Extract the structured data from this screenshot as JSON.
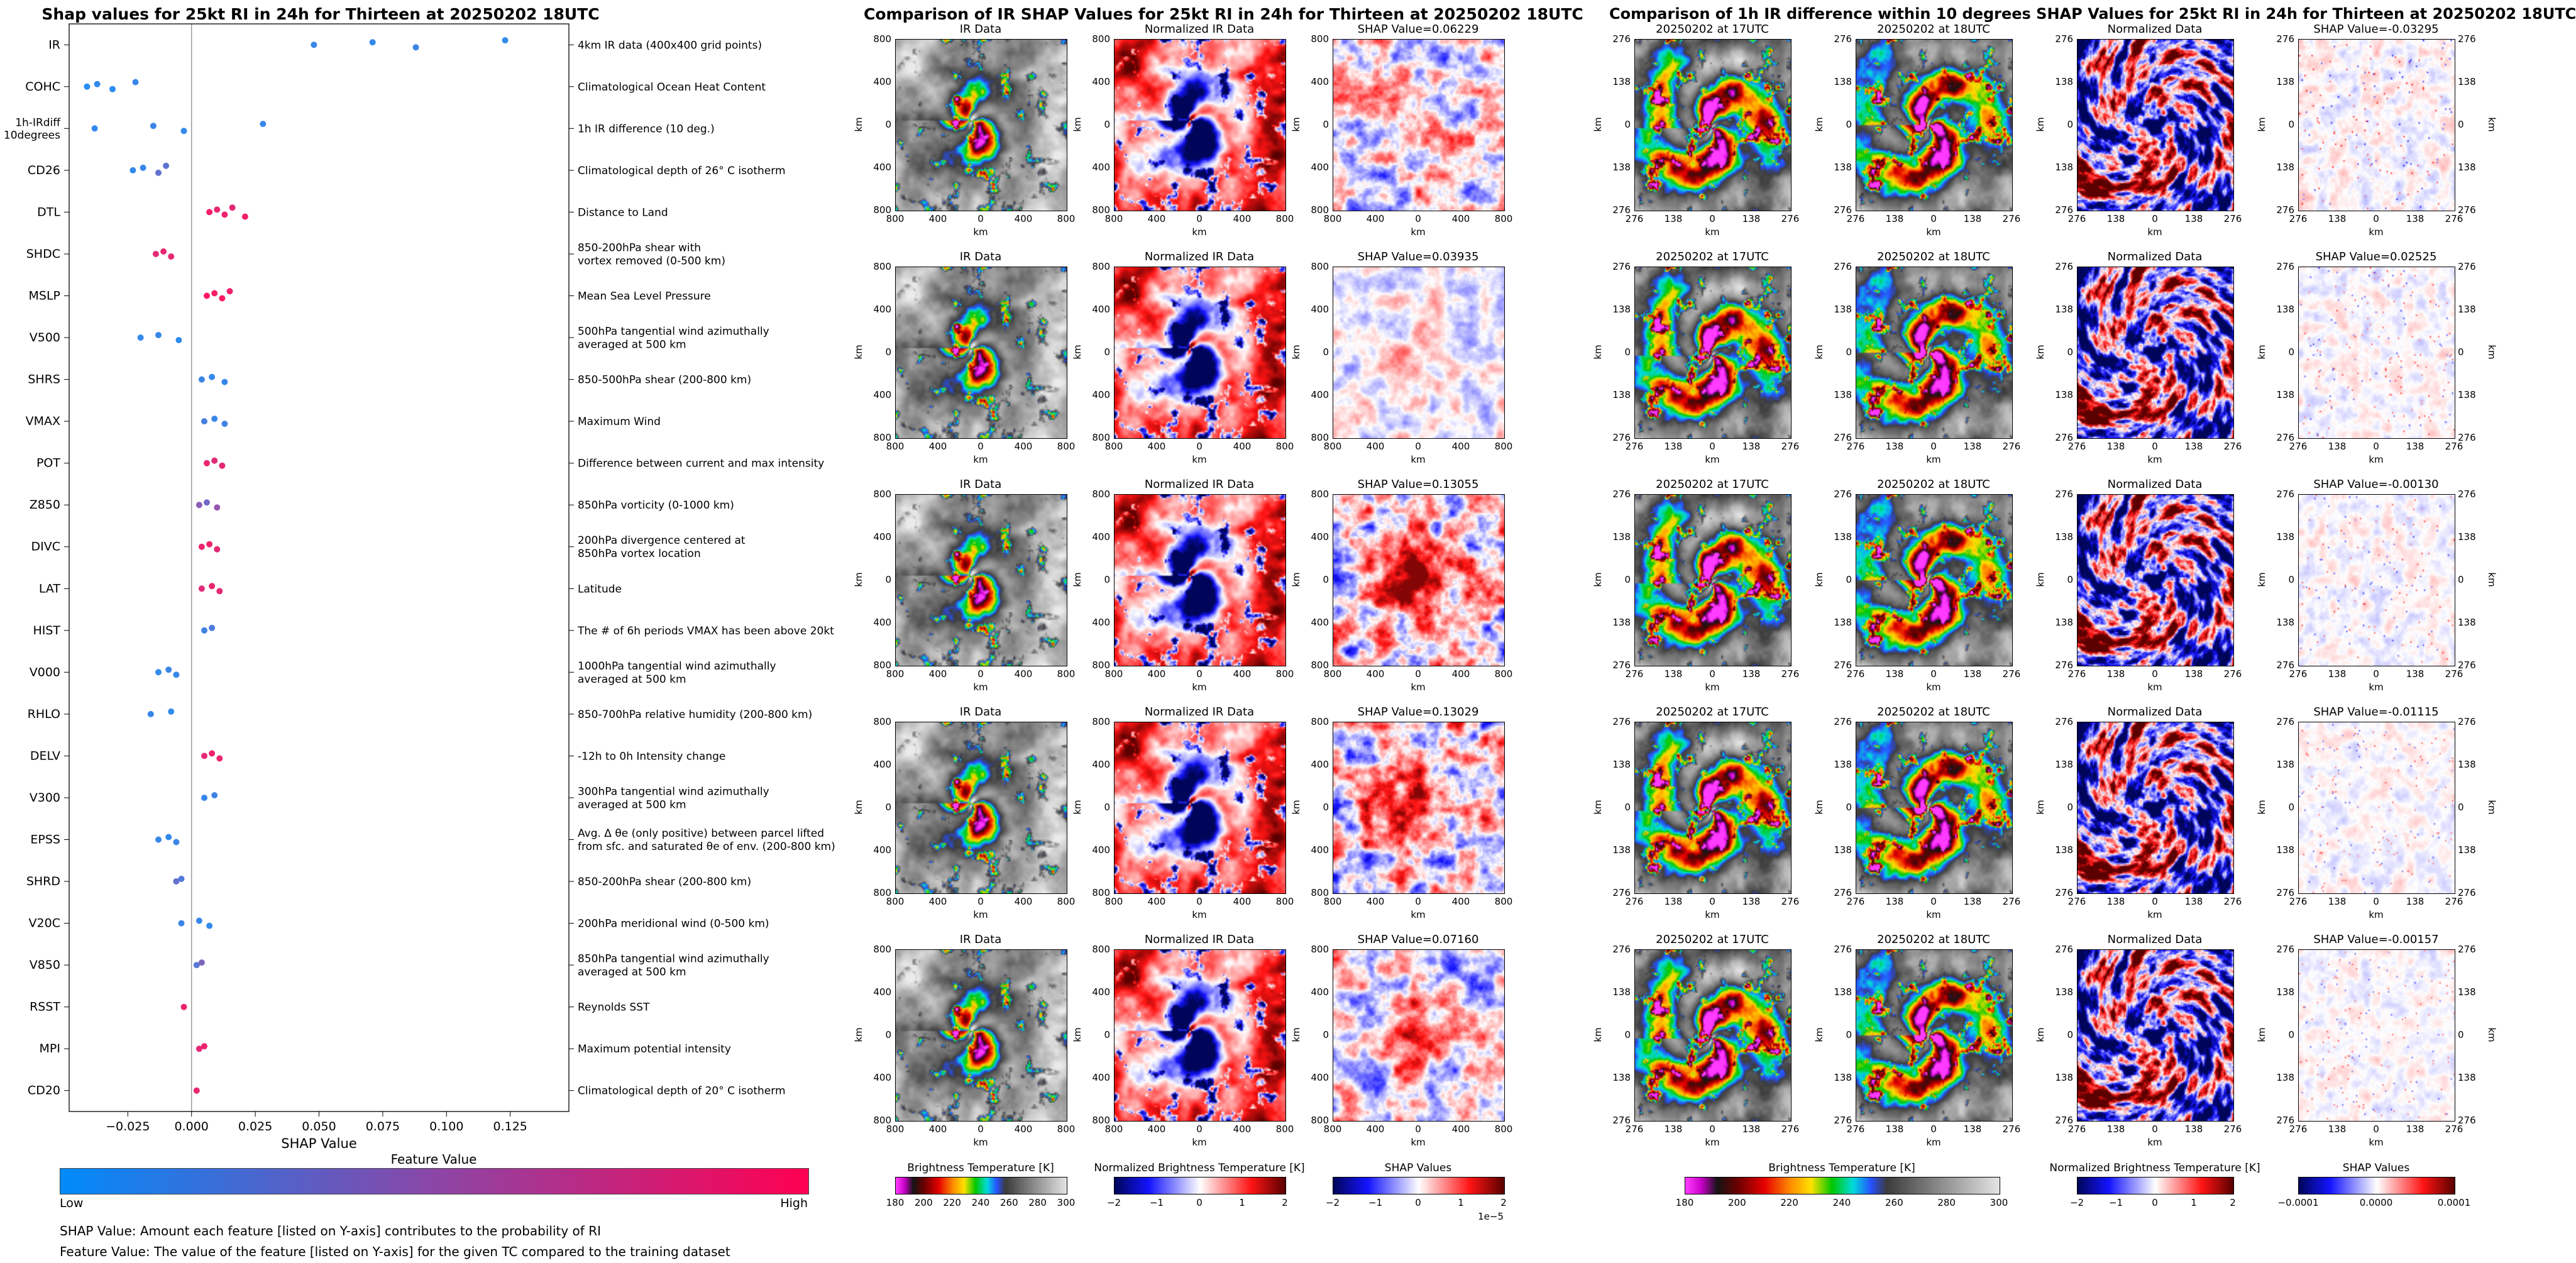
{
  "chart_data": [
    {
      "type": "scatter",
      "title": "Shap values for 25kt RI in 24h for Thirteen at 20250202 18UTC",
      "xlabel": "SHAP Value",
      "xlim": [
        -0.048,
        0.148
      ],
      "x_ticks": [
        -0.025,
        0,
        0.025,
        0.05,
        0.075,
        0.1,
        0.125
      ],
      "x_tick_labels": [
        "−0.025",
        "0.000",
        "0.025",
        "0.050",
        "0.075",
        "0.100",
        "0.125"
      ],
      "colorbar": {
        "title": "Feature Value",
        "low_label": "Low",
        "high_label": "High"
      },
      "features": [
        {
          "name": "IR",
          "desc": "4km IR data (400x400 grid points)",
          "points": [
            [
              0.048,
              0.12
            ],
            [
              0.071,
              0.1
            ],
            [
              0.088,
              0.14
            ],
            [
              0.123,
              0.1
            ]
          ]
        },
        {
          "name": "COHC",
          "desc": "Climatological Ocean Heat Content",
          "points": [
            [
              -0.041,
              0.06
            ],
            [
              -0.037,
              0.1
            ],
            [
              -0.031,
              0.08
            ],
            [
              -0.022,
              0.12
            ]
          ]
        },
        {
          "name": "1h-IRdiff\n10degrees",
          "desc": "1h IR difference (10 deg.)",
          "points": [
            [
              -0.038,
              0.1
            ],
            [
              -0.015,
              0.14
            ],
            [
              -0.003,
              0.1
            ],
            [
              0.028,
              0.12
            ]
          ]
        },
        {
          "name": "CD26",
          "desc": "Climatological depth of 26° C isotherm",
          "points": [
            [
              -0.023,
              0.1
            ],
            [
              -0.019,
              0.12
            ],
            [
              -0.013,
              0.3
            ],
            [
              -0.01,
              0.28
            ]
          ]
        },
        {
          "name": "DTL",
          "desc": "Distance to Land",
          "points": [
            [
              0.007,
              0.95
            ],
            [
              0.01,
              0.9
            ],
            [
              0.013,
              0.92
            ],
            [
              0.016,
              0.88
            ],
            [
              0.021,
              0.94
            ]
          ]
        },
        {
          "name": "SHDC",
          "desc": "850-200hPa shear with\nvortex removed (0-500 km)",
          "points": [
            [
              -0.014,
              0.86
            ],
            [
              -0.011,
              0.9
            ],
            [
              -0.008,
              0.88
            ]
          ]
        },
        {
          "name": "MSLP",
          "desc": "Mean Sea Level Pressure",
          "points": [
            [
              0.006,
              1.0
            ],
            [
              0.009,
              0.96
            ],
            [
              0.012,
              1.0
            ],
            [
              0.015,
              0.94
            ]
          ]
        },
        {
          "name": "V500",
          "desc": "500hPa tangential wind azimuthally\naveraged at 500 km",
          "points": [
            [
              -0.02,
              0.1
            ],
            [
              -0.013,
              0.12
            ],
            [
              -0.005,
              0.08
            ]
          ]
        },
        {
          "name": "SHRS",
          "desc": "850-500hPa shear (200-800 km)",
          "points": [
            [
              0.004,
              0.14
            ],
            [
              0.008,
              0.1
            ],
            [
              0.013,
              0.12
            ]
          ]
        },
        {
          "name": "VMAX",
          "desc": "Maximum Wind",
          "points": [
            [
              0.005,
              0.18
            ],
            [
              0.009,
              0.14
            ],
            [
              0.013,
              0.16
            ]
          ]
        },
        {
          "name": "POT",
          "desc": "Difference between current and max intensity",
          "points": [
            [
              0.006,
              0.9
            ],
            [
              0.009,
              0.86
            ],
            [
              0.012,
              0.88
            ]
          ]
        },
        {
          "name": "Z850",
          "desc": "850hPa vorticity (0-1000 km)",
          "points": [
            [
              0.003,
              0.45
            ],
            [
              0.006,
              0.35
            ],
            [
              0.01,
              0.5
            ]
          ]
        },
        {
          "name": "DIVC",
          "desc": "200hPa divergence centered at\n850hPa vortex location",
          "points": [
            [
              0.004,
              0.9
            ],
            [
              0.007,
              0.92
            ],
            [
              0.01,
              0.88
            ]
          ]
        },
        {
          "name": "LAT",
          "desc": "Latitude",
          "points": [
            [
              0.004,
              0.86
            ],
            [
              0.008,
              0.9
            ],
            [
              0.011,
              0.87
            ]
          ]
        },
        {
          "name": "HIST",
          "desc": "The # of 6h periods VMAX has been above 20kt",
          "points": [
            [
              0.005,
              0.16
            ],
            [
              0.008,
              0.2
            ]
          ]
        },
        {
          "name": "V000",
          "desc": "1000hPa tangential wind azimuthally\naveraged at 500 km",
          "points": [
            [
              -0.013,
              0.1
            ],
            [
              -0.009,
              0.14
            ],
            [
              -0.006,
              0.12
            ]
          ]
        },
        {
          "name": "RHLO",
          "desc": "850-700hPa relative humidity (200-800 km)",
          "points": [
            [
              -0.016,
              0.12
            ],
            [
              -0.008,
              0.1
            ]
          ]
        },
        {
          "name": "DELV",
          "desc": "-12h to 0h Intensity change",
          "points": [
            [
              0.005,
              0.88
            ],
            [
              0.008,
              0.92
            ],
            [
              0.011,
              0.9
            ]
          ]
        },
        {
          "name": "V300",
          "desc": "300hPa tangential wind azimuthally\naveraged at 500 km",
          "points": [
            [
              0.005,
              0.12
            ],
            [
              0.009,
              0.15
            ]
          ]
        },
        {
          "name": "EPSS",
          "desc": "Avg. Δ θe (only positive) between parcel lifted\nfrom sfc. and saturated θe of env. (200-800 km)",
          "points": [
            [
              -0.013,
              0.12
            ],
            [
              -0.009,
              0.1
            ],
            [
              -0.006,
              0.14
            ]
          ]
        },
        {
          "name": "SHRD",
          "desc": "850-200hPa shear (200-800 km)",
          "points": [
            [
              -0.006,
              0.3
            ],
            [
              -0.004,
              0.22
            ]
          ]
        },
        {
          "name": "V20C",
          "desc": "200hPa meridional wind (0-500 km)",
          "points": [
            [
              -0.004,
              0.14
            ],
            [
              0.003,
              0.12
            ],
            [
              0.007,
              0.1
            ]
          ]
        },
        {
          "name": "V850",
          "desc": "850hPa tangential wind azimuthally\naveraged at 500 km",
          "points": [
            [
              0.002,
              0.25
            ],
            [
              0.004,
              0.4
            ]
          ]
        },
        {
          "name": "RSST",
          "desc": "Reynolds SST",
          "points": [
            [
              -0.003,
              0.9
            ]
          ]
        },
        {
          "name": "MPI",
          "desc": "Maximum potential intensity",
          "points": [
            [
              0.003,
              0.88
            ],
            [
              0.005,
              0.92
            ]
          ]
        },
        {
          "name": "CD20",
          "desc": "Climatological depth of 20° C isotherm",
          "points": [
            [
              0.002,
              0.9
            ]
          ]
        }
      ]
    },
    {
      "type": "heatmap",
      "title": "Comparison of IR SHAP Values for 25kt RI in 24h for Thirteen at 20250202 18UTC",
      "column_titles": [
        "IR Data",
        "Normalized IR Data"
      ],
      "shap_titles": [
        "SHAP Value=0.06229",
        "SHAP Value=0.03935",
        "SHAP Value=0.13055",
        "SHAP Value=0.13029",
        "SHAP Value=0.07160"
      ],
      "shap_values": [
        0.06229,
        0.03935,
        0.13055,
        0.13029,
        0.0716
      ],
      "axis_unit": "km",
      "axis_ticks": [
        "800",
        "400",
        "0",
        "400",
        "800"
      ],
      "colorbars": [
        {
          "label": "Brightness Temperature [K]",
          "ticks": [
            "180",
            "200",
            "220",
            "240",
            "260",
            "280",
            "300"
          ],
          "cmap": "ir"
        },
        {
          "label": "Normalized Brightness Temperature [K]",
          "ticks": [
            "−2",
            "−1",
            "0",
            "1",
            "2"
          ],
          "cmap": "seismic"
        },
        {
          "label": "SHAP Values",
          "ticks": [
            "−2",
            "−1",
            "0",
            "1",
            "2"
          ],
          "offset": "1e−5",
          "cmap": "seismic"
        }
      ]
    },
    {
      "type": "heatmap",
      "title": "Comparison of 1h IR difference within 10 degrees SHAP Values for 25kt RI in 24h for Thirteen at 20250202 18UTC",
      "column_titles": [
        "20250202 at 17UTC",
        "20250202 at 18UTC",
        "Normalized Data"
      ],
      "shap_titles": [
        "SHAP Value=-0.03295",
        "SHAP Value=0.02525",
        "SHAP Value=-0.00130",
        "SHAP Value=-0.01115",
        "SHAP Value=-0.00157"
      ],
      "shap_values": [
        -0.03295,
        0.02525,
        -0.0013,
        -0.01115,
        -0.00157
      ],
      "axis_unit": "km",
      "axis_ticks": [
        "276",
        "138",
        "0",
        "138",
        "276"
      ],
      "colorbars": [
        {
          "label": "Brightness Temperature [K]",
          "ticks": [
            "180",
            "200",
            "220",
            "240",
            "260",
            "280",
            "300"
          ],
          "cmap": "ir"
        },
        {
          "label": "Normalized Brightness Temperature [K]",
          "ticks": [
            "−2",
            "−1",
            "0",
            "1",
            "2"
          ],
          "cmap": "seismic"
        },
        {
          "label": "SHAP Values",
          "ticks": [
            "−0.0001",
            "0.0000",
            "0.0001"
          ],
          "cmap": "seismic"
        }
      ]
    }
  ],
  "footnotes": [
    "SHAP Value: Amount each feature [listed on Y-axis] contributes to the probability of RI",
    "Feature Value: The value of the feature [listed on Y-axis] for the given TC compared to the training dataset"
  ],
  "colors": {
    "feature_low": "#008bfb",
    "feature_mid": "#8b46a6",
    "feature_high": "#ff0051",
    "ir_cmap": [
      [
        180,
        "#ff3cff"
      ],
      [
        186,
        "#c800c8"
      ],
      [
        192,
        "#141414"
      ],
      [
        200,
        "#6e0000"
      ],
      [
        210,
        "#e60000"
      ],
      [
        220,
        "#ff8c00"
      ],
      [
        228,
        "#ffe100"
      ],
      [
        236,
        "#00c800"
      ],
      [
        244,
        "#00dcdc"
      ],
      [
        251,
        "#2850ff"
      ],
      [
        257,
        "#3c3c3c"
      ],
      [
        280,
        "#969696"
      ],
      [
        302,
        "#ebebeb"
      ]
    ],
    "seismic_cmap": [
      [
        -1,
        "#00055a"
      ],
      [
        -0.6,
        "#1414ff"
      ],
      [
        0,
        "#ffffff"
      ],
      [
        0.6,
        "#ff1414"
      ],
      [
        1,
        "#5a0000"
      ]
    ]
  }
}
